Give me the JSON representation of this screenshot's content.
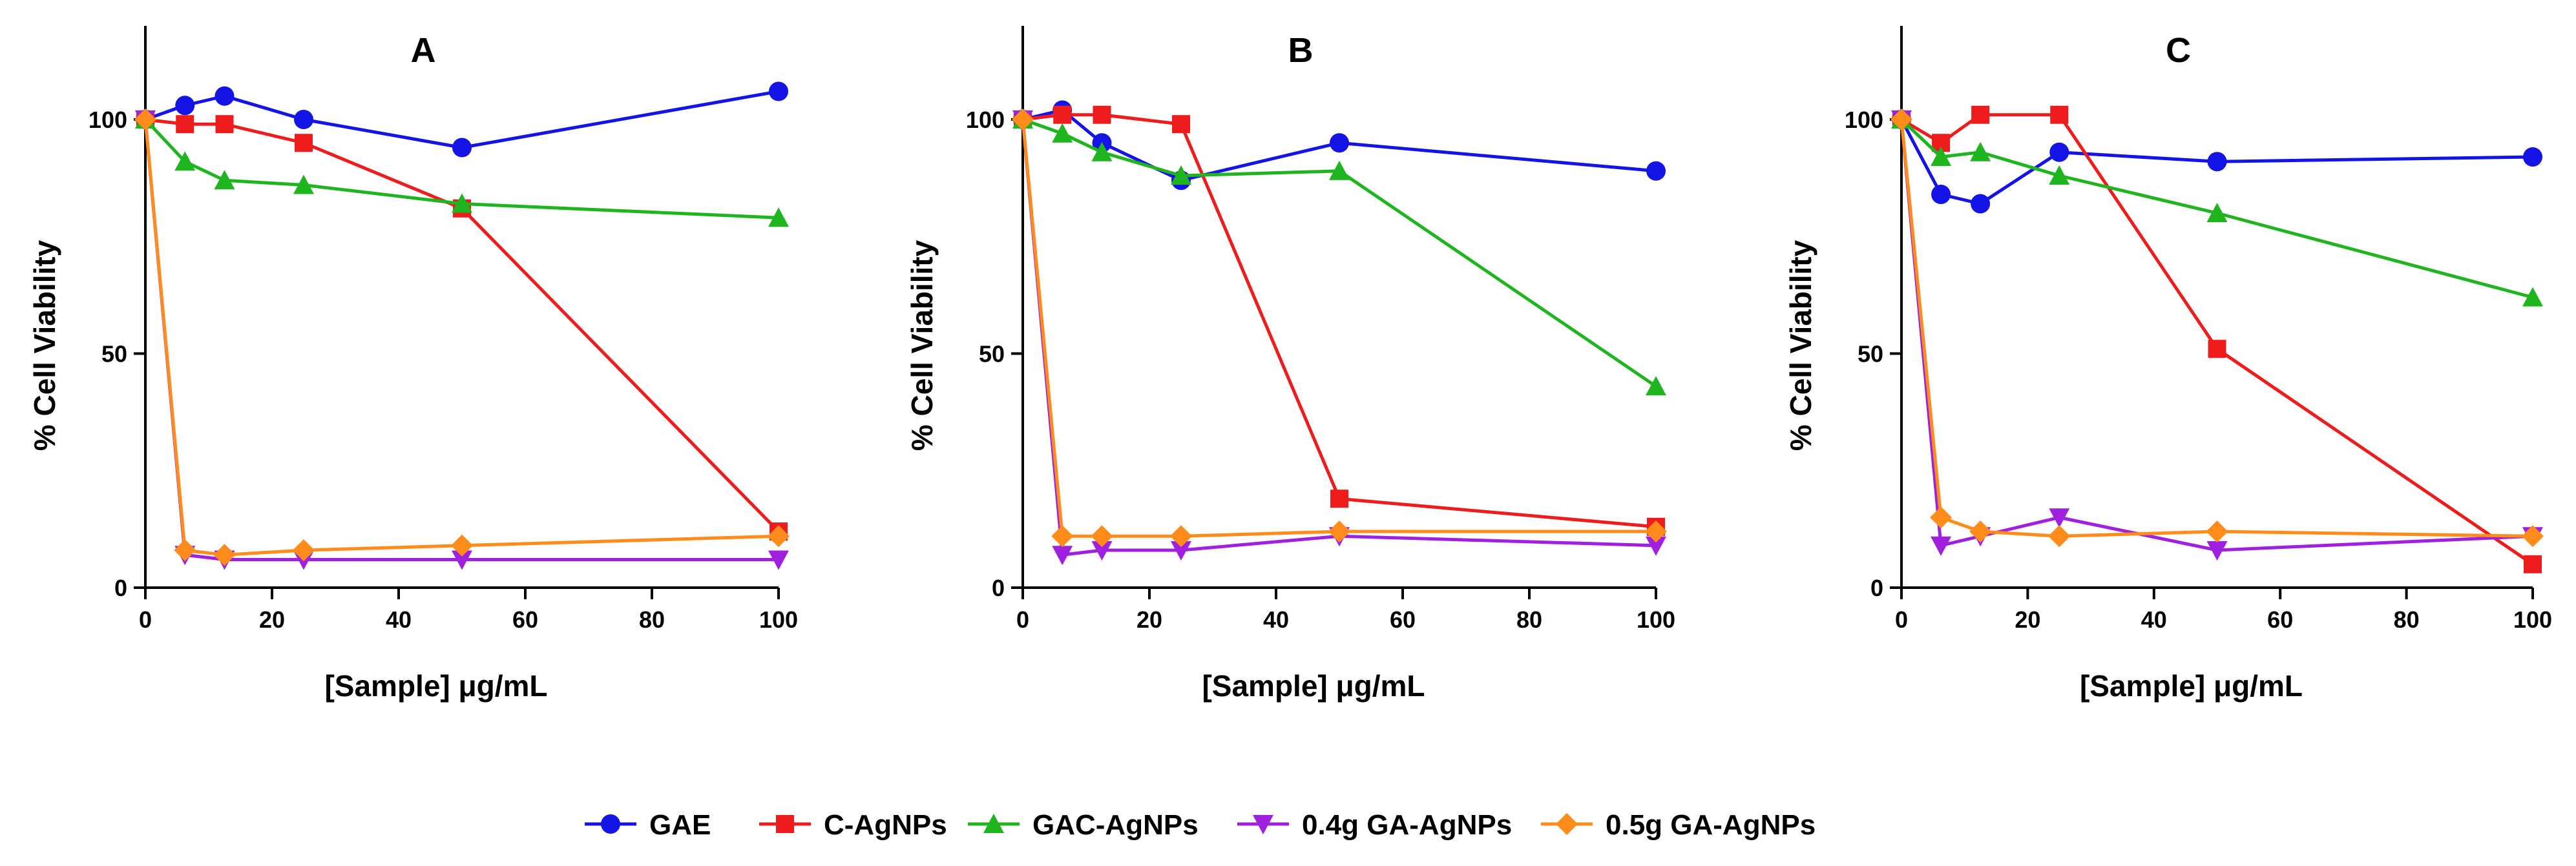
{
  "chart_data": {
    "type": "line",
    "x": [
      0,
      6.25,
      12.5,
      25,
      50,
      100
    ],
    "xlabel": "[Sample] μg/mL",
    "ylabel": "% Cell Viability",
    "xlim": [
      0,
      100
    ],
    "ylim": [
      0,
      120
    ],
    "xticks": [
      0,
      20,
      40,
      60,
      80,
      100
    ],
    "yticks": [
      0,
      50,
      100
    ],
    "legend_position": "bottom-center",
    "series_styles": [
      {
        "name": "GAE",
        "color": "#1414e6",
        "marker": "circle"
      },
      {
        "name": "C-AgNPs",
        "color": "#ee1c1c",
        "marker": "square"
      },
      {
        "name": "GAC-AgNPs",
        "color": "#1fb51f",
        "marker": "triangle-up"
      },
      {
        "name": "0.4g GA-AgNPs",
        "color": "#a020e0",
        "marker": "triangle-down"
      },
      {
        "name": "0.5g GA-AgNPs",
        "color": "#ff8c1a",
        "marker": "diamond"
      }
    ],
    "panels": [
      {
        "title": "A",
        "series": [
          {
            "name": "GAE",
            "values": [
              100,
              103,
              105,
              100,
              94,
              106
            ]
          },
          {
            "name": "C-AgNPs",
            "values": [
              100,
              99,
              99,
              95,
              81,
              12
            ]
          },
          {
            "name": "GAC-AgNPs",
            "values": [
              100,
              91,
              87,
              86,
              82,
              79
            ]
          },
          {
            "name": "0.4g GA-AgNPs",
            "values": [
              100,
              7,
              6,
              6,
              6,
              6
            ]
          },
          {
            "name": "0.5g GA-AgNPs",
            "values": [
              100,
              8,
              7,
              8,
              9,
              11
            ]
          }
        ]
      },
      {
        "title": "B",
        "series": [
          {
            "name": "GAE",
            "values": [
              100,
              102,
              95,
              87,
              95,
              89
            ]
          },
          {
            "name": "C-AgNPs",
            "values": [
              100,
              101,
              101,
              99,
              19,
              13
            ]
          },
          {
            "name": "GAC-AgNPs",
            "values": [
              100,
              97,
              93,
              88,
              89,
              43
            ]
          },
          {
            "name": "0.4g GA-AgNPs",
            "values": [
              100,
              7,
              8,
              8,
              11,
              9
            ]
          },
          {
            "name": "0.5g GA-AgNPs",
            "values": [
              100,
              11,
              11,
              11,
              12,
              12
            ]
          }
        ]
      },
      {
        "title": "C",
        "series": [
          {
            "name": "GAE",
            "values": [
              100,
              84,
              82,
              93,
              91,
              92
            ]
          },
          {
            "name": "C-AgNPs",
            "values": [
              100,
              95,
              101,
              101,
              51,
              5
            ]
          },
          {
            "name": "GAC-AgNPs",
            "values": [
              100,
              92,
              93,
              88,
              80,
              62
            ]
          },
          {
            "name": "0.4g GA-AgNPs",
            "values": [
              100,
              9,
              11,
              15,
              8,
              11
            ]
          },
          {
            "name": "0.5g GA-AgNPs",
            "values": [
              100,
              15,
              12,
              11,
              12,
              11
            ]
          }
        ]
      }
    ]
  }
}
